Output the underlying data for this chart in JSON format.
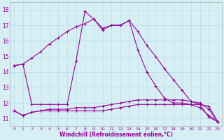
{
  "xlabel": "Windchill (Refroidissement éolien,°C)",
  "background_color": "#d6eff5",
  "grid_color": "#b8dde6",
  "line_color": "#990099",
  "x_hours": [
    0,
    1,
    2,
    3,
    4,
    5,
    6,
    7,
    8,
    9,
    10,
    11,
    12,
    13,
    14,
    15,
    16,
    17,
    18,
    19,
    20,
    21,
    22,
    23
  ],
  "series": [
    [
      14.4,
      14.5,
      14.9,
      15.3,
      15.8,
      16.2,
      16.6,
      16.9,
      17.1,
      17.4,
      16.8,
      17.0,
      17.0,
      17.3,
      16.6,
      15.7,
      15.0,
      14.2,
      13.5,
      12.8,
      12.1,
      11.9,
      11.8,
      10.8
    ],
    [
      14.4,
      14.5,
      11.9,
      11.9,
      11.9,
      11.9,
      11.9,
      14.7,
      17.9,
      17.4,
      16.7,
      17.0,
      17.0,
      17.3,
      15.4,
      14.0,
      13.1,
      12.3,
      12.0,
      12.0,
      11.9,
      11.9,
      11.1,
      10.8
    ],
    [
      11.5,
      11.2,
      11.4,
      11.5,
      11.6,
      11.6,
      11.6,
      11.7,
      11.7,
      11.7,
      11.8,
      11.9,
      12.0,
      12.1,
      12.2,
      12.2,
      12.2,
      12.2,
      12.2,
      12.2,
      12.1,
      12.0,
      11.6,
      10.8
    ],
    [
      11.5,
      11.2,
      11.4,
      11.5,
      11.5,
      11.5,
      11.5,
      11.5,
      11.5,
      11.5,
      11.5,
      11.6,
      11.7,
      11.8,
      11.9,
      11.9,
      11.9,
      11.9,
      11.9,
      11.9,
      11.9,
      11.7,
      11.2,
      10.8
    ]
  ],
  "ylim": [
    10.5,
    18.5
  ],
  "yticks": [
    11,
    12,
    13,
    14,
    15,
    16,
    17,
    18
  ],
  "xtick_labels": [
    "0",
    "1",
    "2",
    "3",
    "4",
    "5",
    "6",
    "7",
    "8",
    "9",
    "10",
    "11",
    "12",
    "13",
    "14",
    "15",
    "16",
    "17",
    "18",
    "19",
    "20",
    "21",
    "22",
    "23"
  ]
}
